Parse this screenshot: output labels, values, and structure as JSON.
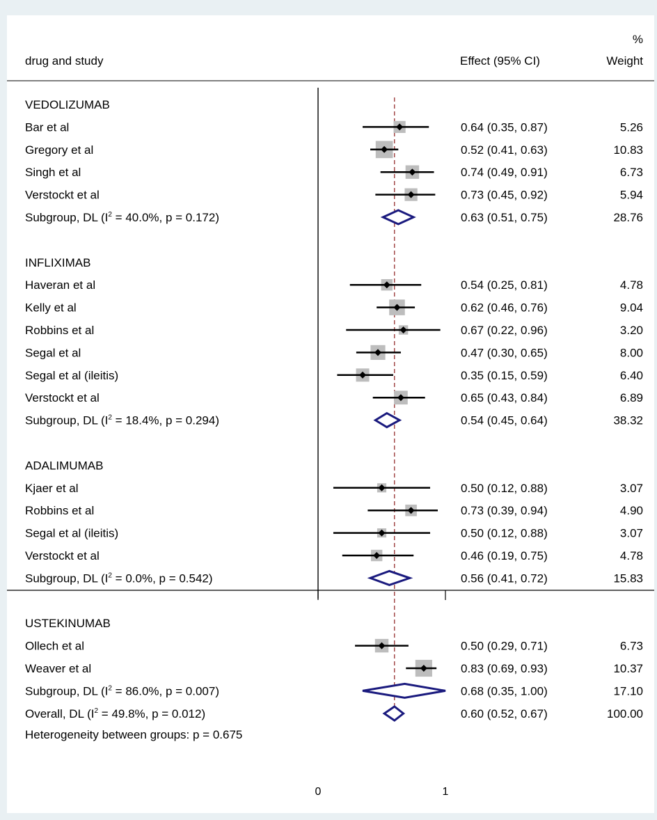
{
  "chart_data": {
    "type": "forest",
    "header": {
      "study_col": "drug and study",
      "effect_col": "Effect (95% CI)",
      "weight_col_line1": "%",
      "weight_col_line2": "Weight"
    },
    "x_axis": {
      "ticks": [
        0,
        1
      ],
      "tick_labels": [
        "0",
        "1"
      ]
    },
    "reference_line": 0.6,
    "colors": {
      "ci_line": "#000000",
      "box": "#bdbdbd",
      "diamond": "#1a1a7e",
      "ref_line": "#8b1a1a"
    },
    "groups": [
      {
        "name": "VEDOLIZUMAB",
        "studies": [
          {
            "label": "Bar et al",
            "est": 0.64,
            "lo": 0.35,
            "hi": 0.87,
            "text": "0.64 (0.35, 0.87)",
            "weight": 5.26,
            "weight_text": "5.26"
          },
          {
            "label": "Gregory et al",
            "est": 0.52,
            "lo": 0.41,
            "hi": 0.63,
            "text": "0.52 (0.41, 0.63)",
            "weight": 10.83,
            "weight_text": "10.83"
          },
          {
            "label": "Singh et al",
            "est": 0.74,
            "lo": 0.49,
            "hi": 0.91,
            "text": "0.74 (0.49, 0.91)",
            "weight": 6.73,
            "weight_text": "6.73"
          },
          {
            "label": "Verstockt et al",
            "est": 0.73,
            "lo": 0.45,
            "hi": 0.92,
            "text": "0.73 (0.45, 0.92)",
            "weight": 5.94,
            "weight_text": "5.94"
          }
        ],
        "subgroup": {
          "label_pre": "Subgroup, DL (I",
          "label_sup": "2",
          "label_post": " = 40.0%, p = 0.172)",
          "est": 0.63,
          "lo": 0.51,
          "hi": 0.75,
          "text": "0.63 (0.51, 0.75)",
          "weight_text": "28.76"
        }
      },
      {
        "name": "INFLIXIMAB",
        "studies": [
          {
            "label": "Haveran et al",
            "est": 0.54,
            "lo": 0.25,
            "hi": 0.81,
            "text": "0.54 (0.25, 0.81)",
            "weight": 4.78,
            "weight_text": "4.78"
          },
          {
            "label": "Kelly et al",
            "est": 0.62,
            "lo": 0.46,
            "hi": 0.76,
            "text": "0.62 (0.46, 0.76)",
            "weight": 9.04,
            "weight_text": "9.04"
          },
          {
            "label": "Robbins et al",
            "est": 0.67,
            "lo": 0.22,
            "hi": 0.96,
            "text": "0.67 (0.22, 0.96)",
            "weight": 3.2,
            "weight_text": "3.20"
          },
          {
            "label": "Segal et al",
            "est": 0.47,
            "lo": 0.3,
            "hi": 0.65,
            "text": "0.47 (0.30, 0.65)",
            "weight": 8.0,
            "weight_text": "8.00"
          },
          {
            "label": "Segal et al (ileitis)",
            "est": 0.35,
            "lo": 0.15,
            "hi": 0.59,
            "text": "0.35 (0.15, 0.59)",
            "weight": 6.4,
            "weight_text": "6.40"
          },
          {
            "label": "Verstockt et al",
            "est": 0.65,
            "lo": 0.43,
            "hi": 0.84,
            "text": "0.65 (0.43, 0.84)",
            "weight": 6.89,
            "weight_text": "6.89"
          }
        ],
        "subgroup": {
          "label_pre": "Subgroup, DL (I",
          "label_sup": "2",
          "label_post": " = 18.4%, p = 0.294)",
          "est": 0.54,
          "lo": 0.45,
          "hi": 0.64,
          "text": "0.54 (0.45, 0.64)",
          "weight_text": "38.32"
        }
      },
      {
        "name": "ADALIMUMAB",
        "studies": [
          {
            "label": "Kjaer et al",
            "est": 0.5,
            "lo": 0.12,
            "hi": 0.88,
            "text": "0.50 (0.12, 0.88)",
            "weight": 3.07,
            "weight_text": "3.07"
          },
          {
            "label": "Robbins et al",
            "est": 0.73,
            "lo": 0.39,
            "hi": 0.94,
            "text": "0.73 (0.39, 0.94)",
            "weight": 4.9,
            "weight_text": "4.90"
          },
          {
            "label": "Segal et al (ileitis)",
            "est": 0.5,
            "lo": 0.12,
            "hi": 0.88,
            "text": "0.50 (0.12, 0.88)",
            "weight": 3.07,
            "weight_text": "3.07"
          },
          {
            "label": "Verstockt et al",
            "est": 0.46,
            "lo": 0.19,
            "hi": 0.75,
            "text": "0.46 (0.19, 0.75)",
            "weight": 4.78,
            "weight_text": "4.78"
          }
        ],
        "subgroup": {
          "label_pre": "Subgroup, DL (I",
          "label_sup": "2",
          "label_post": " = 0.0%, p = 0.542)",
          "est": 0.56,
          "lo": 0.41,
          "hi": 0.72,
          "text": "0.56 (0.41, 0.72)",
          "weight_text": "15.83"
        }
      },
      {
        "name": "USTEKINUMAB",
        "studies": [
          {
            "label": "Ollech et al",
            "est": 0.5,
            "lo": 0.29,
            "hi": 0.71,
            "text": "0.50 (0.29, 0.71)",
            "weight": 6.73,
            "weight_text": "6.73"
          },
          {
            "label": "Weaver et al",
            "est": 0.83,
            "lo": 0.69,
            "hi": 0.93,
            "text": "0.83 (0.69, 0.93)",
            "weight": 10.37,
            "weight_text": "10.37"
          }
        ],
        "subgroup": {
          "label_pre": "Subgroup, DL (I",
          "label_sup": "2",
          "label_post": " = 86.0%, p = 0.007)",
          "est": 0.68,
          "lo": 0.35,
          "hi": 1.0,
          "text": "0.68 (0.35, 1.00)",
          "weight_text": "17.10"
        }
      }
    ],
    "overall": {
      "label_pre": "Overall, DL (I",
      "label_sup": "2",
      "label_post": " = 49.8%, p = 0.012)",
      "est": 0.6,
      "lo": 0.52,
      "hi": 0.67,
      "text": "0.60 (0.52, 0.67)",
      "weight_text": "100.00"
    },
    "heterogeneity_text": "Heterogeneity between groups: p = 0.675"
  }
}
